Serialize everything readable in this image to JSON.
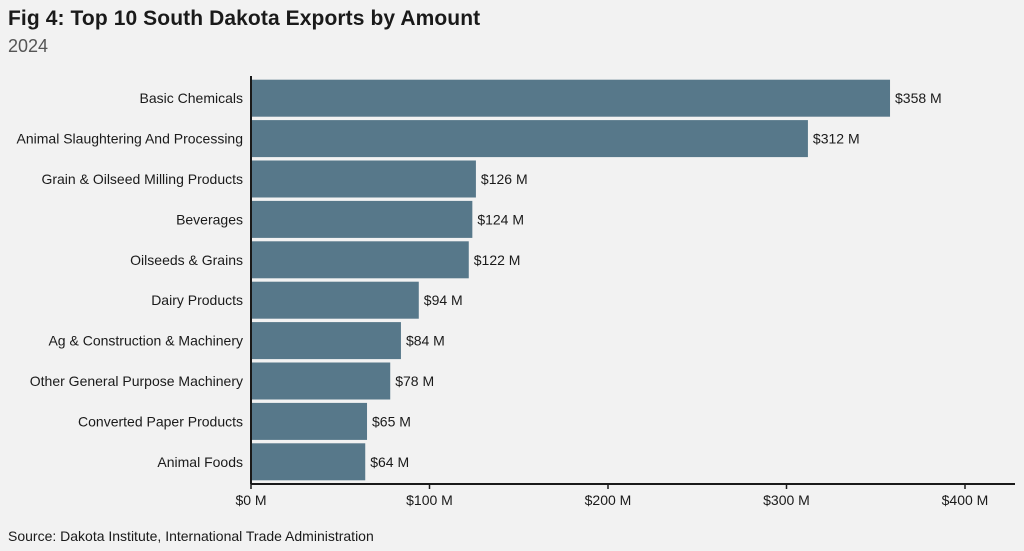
{
  "header": {
    "title": "Fig 4: Top 10 South Dakota Exports by Amount",
    "subtitle": "2024"
  },
  "footer": {
    "source": "Source: Dakota Institute, International Trade Administration"
  },
  "colors": {
    "bar": "#57788a",
    "axis": "#1a1a1a",
    "background": "#f2f2f2"
  },
  "chart_data": {
    "type": "bar",
    "orientation": "horizontal",
    "title": "Fig 4: Top 10 South Dakota Exports by Amount",
    "subtitle": "2024",
    "categories": [
      "Basic Chemicals",
      "Animal Slaughtering And Processing",
      "Grain & Oilseed Milling Products",
      "Beverages",
      "Oilseeds & Grains",
      "Dairy Products",
      "Ag & Construction & Machinery",
      "Other General Purpose Machinery",
      "Converted Paper Products",
      "Animal Foods"
    ],
    "values": [
      358,
      312,
      126,
      124,
      122,
      94,
      84,
      78,
      65,
      64
    ],
    "value_labels": [
      "$358 M",
      "$312 M",
      "$126 M",
      "$124 M",
      "$122 M",
      "$94 M",
      "$84 M",
      "$78 M",
      "$65 M",
      "$64 M"
    ],
    "x_ticks": [
      0,
      100,
      200,
      300,
      400
    ],
    "x_tick_labels": [
      "$0 M",
      "$100 M",
      "$200 M",
      "$300 M",
      "$400 M"
    ],
    "xlim": [
      0,
      420
    ],
    "xlabel": "",
    "ylabel": "",
    "grid": false,
    "legend": "none"
  }
}
